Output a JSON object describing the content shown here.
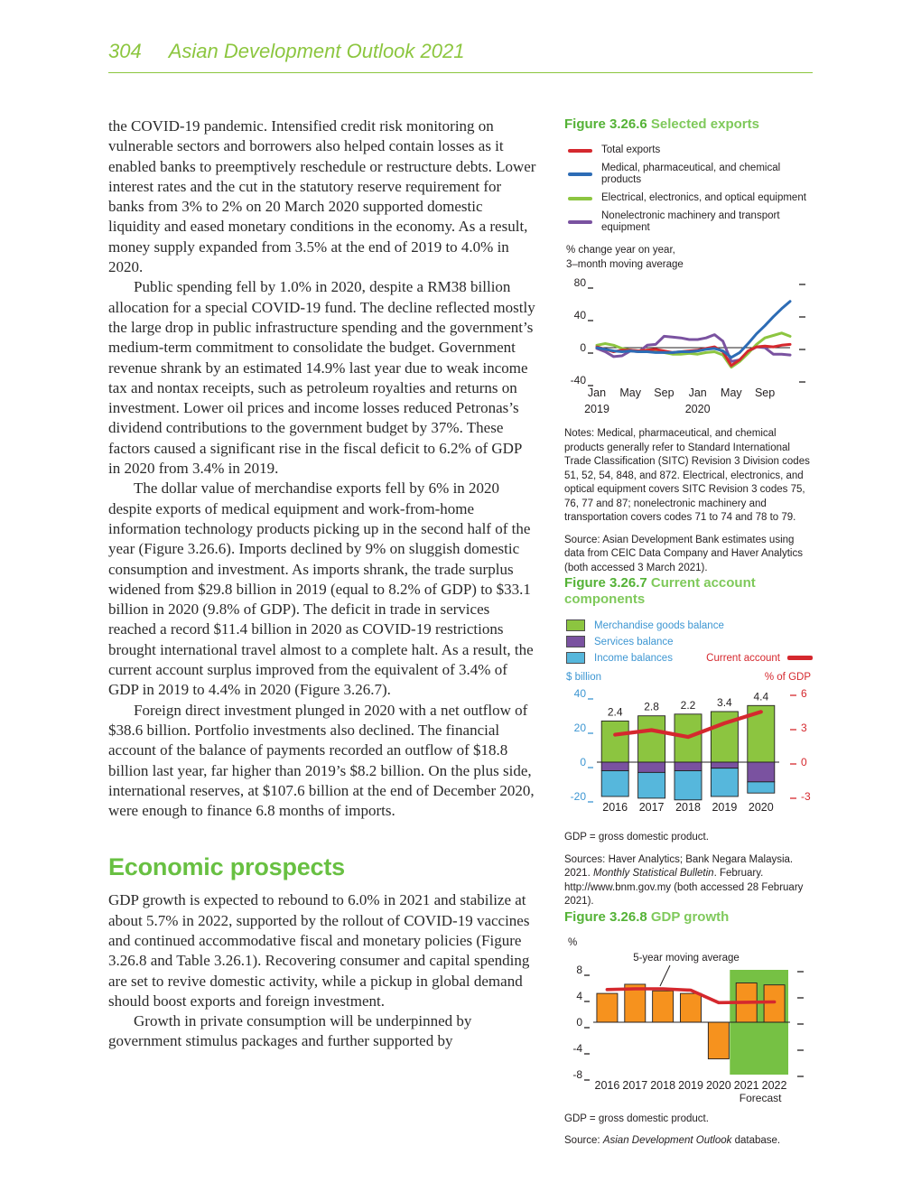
{
  "theme": {
    "accent_green": "#8cc63f",
    "figure_label_green": "#54b236",
    "figure_title_green": "#7fc95b",
    "heading_green": "#68c042",
    "axis_blue": "#3d96d2",
    "axis_red": "#d5282e"
  },
  "page": {
    "number": "304",
    "title": "Asian Development Outlook 2021"
  },
  "article": {
    "para1": "the COVID-19 pandemic. Intensified credit risk monitoring on vulnerable sectors and borrowers also helped contain losses as it enabled banks to preemptively reschedule or restructure debts. Lower interest rates and the cut in the statutory reserve requirement for banks from 3% to 2% on 20 March 2020 supported domestic liquidity and eased monetary conditions in the economy. As a result, money supply expanded from 3.5% at the end of 2019 to 4.0% in 2020.",
    "para2": "Public spending fell by 1.0% in 2020, despite a RM38 billion allocation for a special COVID-19 fund. The decline reflected mostly the large drop in public infrastructure spending and the government’s medium-term commitment to consolidate the budget. Government revenue shrank by an estimated 14.9% last year due to weak income tax and nontax receipts, such as petroleum royalties and returns on investment. Lower oil prices and income losses reduced Petronas’s dividend contributions to the government budget by 37%. These factors caused a significant rise in the fiscal deficit to 6.2% of GDP in 2020 from 3.4% in 2019.",
    "para3": "The dollar value of merchandise exports fell by 6% in 2020 despite exports of medical equipment and work-from-home information technology products picking up in the second half of the year (Figure 3.26.6). Imports declined by 9% on sluggish domestic consumption and investment. As imports shrank, the trade surplus widened from $29.8 billion in 2019 (equal to 8.2% of GDP) to $33.1 billion in 2020 (9.8% of GDP). The deficit in trade in services reached a record $11.4 billion in 2020 as COVID-19 restrictions brought international travel almost to a complete halt. As a result, the current account surplus improved from the equivalent of 3.4% of GDP in 2019 to 4.4% in 2020 (Figure 3.26.7).",
    "para4": "Foreign direct investment plunged in 2020 with a net outflow of $38.6 billion. Portfolio investments also declined. The financial account of the balance of payments recorded an outflow of $18.8 billion last year, far higher than 2019’s $8.2 billion. On the plus side, international reserves, at $107.6 billion at the end of December 2020, were enough to finance 6.8 months of imports.",
    "heading": "Economic prospects",
    "para5": "GDP growth is expected to rebound to 6.0% in 2021 and stabilize at about 5.7% in 2022, supported by the rollout of COVID-19 vaccines and continued accommodative fiscal and monetary policies (Figure 3.26.8 and Table 3.26.1). Recovering consumer and capital spending are set to revive domestic activity, while a pickup in global demand should boost exports and foreign investment.",
    "para6": "Growth in private consumption will be underpinned by government stimulus packages and further supported by"
  },
  "figures": {
    "fig1": {
      "label": "Figure 3.26.6",
      "title": "Selected exports",
      "unit1": "% change year on year,",
      "unit2": "3–month moving average",
      "notes": "Notes: Medical, pharmaceutical, and chemical products generally refer to Standard International Trade Classification (SITC) Revision 3 Division codes 51, 52, 54, 848, and 872. Electrical, electronics, and optical equipment covers SITC Revision 3 codes 75, 76, 77 and 87; nonelectronic machinery and transportation covers codes 71 to 74 and 78 to 79.",
      "source": "Source: Asian Development Bank estimates using data from CEIC Data Company and Haver Analytics (both accessed 3 March 2021)."
    },
    "fig2": {
      "label": "Figure 3.26.7",
      "title": "Current account components",
      "gdp_note": "GDP = gross domestic product.",
      "source_pre": "Sources: Haver Analytics; Bank Negara Malaysia. 2021. ",
      "source_italic": "Monthly Statistical Bulletin",
      "source_post": ". February. http://www.bnm.gov.my (both accessed 28 February 2021)."
    },
    "fig3": {
      "label": "Figure 3.26.8",
      "title": "GDP growth",
      "unit": "%",
      "gdp_note": "GDP = gross domestic product.",
      "source_pre": "Source: ",
      "source_italic": "Asian Development Outlook",
      "source_post": " database."
    }
  },
  "chart_data": [
    {
      "type": "line",
      "title": "Selected exports",
      "ylabel": "% change year on year, 3-month moving average",
      "ylim": [
        -40,
        80
      ],
      "yticks": [
        -40,
        0,
        40,
        80
      ],
      "n_points": 24,
      "x_tick_labels": [
        "Jan",
        "May",
        "Sep",
        "Jan",
        "May",
        "Sep"
      ],
      "x_tick_positions": [
        0,
        4,
        8,
        12,
        16,
        20
      ],
      "year_labels": [
        {
          "text": "2019",
          "at": 0
        },
        {
          "text": "2020",
          "at": 12
        }
      ],
      "draw_order": [
        3,
        2,
        0,
        1
      ],
      "series": [
        {
          "name": "Total exports",
          "color": "#d5282e",
          "values": [
            1,
            -2,
            -5,
            -3,
            -3,
            -4,
            -3,
            -2,
            -4,
            -6,
            -5,
            -4,
            -3,
            -1,
            1,
            -5,
            -22,
            -15,
            -4,
            1,
            2,
            1,
            3,
            4
          ]
        },
        {
          "name": "Medical, pharmaceutical, and chemical products",
          "color": "#2d6cb5",
          "values": [
            0,
            -2,
            -4,
            -5,
            -4,
            -5,
            -5,
            -6,
            -6,
            -6,
            -5,
            -5,
            -4,
            -2,
            -1,
            -4,
            -12,
            -6,
            5,
            17,
            27,
            38,
            48,
            57
          ]
        },
        {
          "name": "Electrical, electronics, and optical equipment",
          "color": "#8cc540",
          "values": [
            3,
            5,
            3,
            -1,
            -3,
            -4,
            -3,
            -4,
            -6,
            -8,
            -8,
            -7,
            -8,
            -6,
            -5,
            -9,
            -24,
            -17,
            -7,
            4,
            12,
            15,
            18,
            14
          ]
        },
        {
          "name": "Nonelectronic machinery and transport equipment",
          "color": "#7a52a0",
          "values": [
            -1,
            -5,
            -11,
            -10,
            -4,
            -5,
            3,
            4,
            14,
            13,
            12,
            10,
            10,
            12,
            16,
            8,
            -17,
            -15,
            -5,
            1,
            0,
            -8,
            -8,
            -9
          ]
        }
      ]
    },
    {
      "type": "stacked-bar-line",
      "title": "Current account components",
      "categories": [
        "2016",
        "2017",
        "2018",
        "2019",
        "2020"
      ],
      "left_axis": {
        "label": "$ billion",
        "lim": [
          -20,
          40
        ],
        "ticks": [
          -20,
          0,
          20,
          40
        ],
        "color": "#3d96d2"
      },
      "right_axis": {
        "label": "% of GDP",
        "lim": [
          -3,
          6
        ],
        "ticks": [
          -3,
          0,
          3,
          6
        ],
        "color": "#d5282e"
      },
      "bar_series": [
        {
          "name": "Merchandise goods balance",
          "color": "#8cc540",
          "values": [
            24,
            27,
            28,
            29.5,
            33
          ]
        },
        {
          "name": "Services balance",
          "color": "#7a52a0",
          "values": [
            -5,
            -6,
            -5,
            -3.5,
            -11.5
          ]
        },
        {
          "name": "Income balances",
          "color": "#56b7dc",
          "values": [
            -15,
            -15,
            -17,
            -16.5,
            -6.5
          ]
        }
      ],
      "line_series": {
        "name": "Current account",
        "color": "#d5282e",
        "axis": "right",
        "values": [
          2.4,
          2.8,
          2.2,
          3.4,
          4.4
        ]
      },
      "data_labels": [
        "2.4",
        "2.8",
        "2.2",
        "3.4",
        "4.4"
      ]
    },
    {
      "type": "bar-line-forecast",
      "title": "GDP growth",
      "unit": "%",
      "categories": [
        "2016",
        "2017",
        "2018",
        "2019",
        "2020",
        "2021",
        "2022"
      ],
      "ylim": [
        -8,
        8
      ],
      "yticks": [
        -8,
        -4,
        0,
        4,
        8
      ],
      "bar_color": "#f6921e",
      "bar_values": [
        4.4,
        5.8,
        4.8,
        4.4,
        -5.6,
        6.0,
        5.7
      ],
      "line": {
        "name": "5-year moving average",
        "color": "#d5282e",
        "values": [
          5.0,
          5.1,
          5.1,
          4.9,
          3.0,
          3.05,
          3.1
        ]
      },
      "forecast": {
        "label": "Forecast",
        "start_index": 5,
        "band_color": "#76c144"
      },
      "annotation": "5-year moving average"
    }
  ]
}
